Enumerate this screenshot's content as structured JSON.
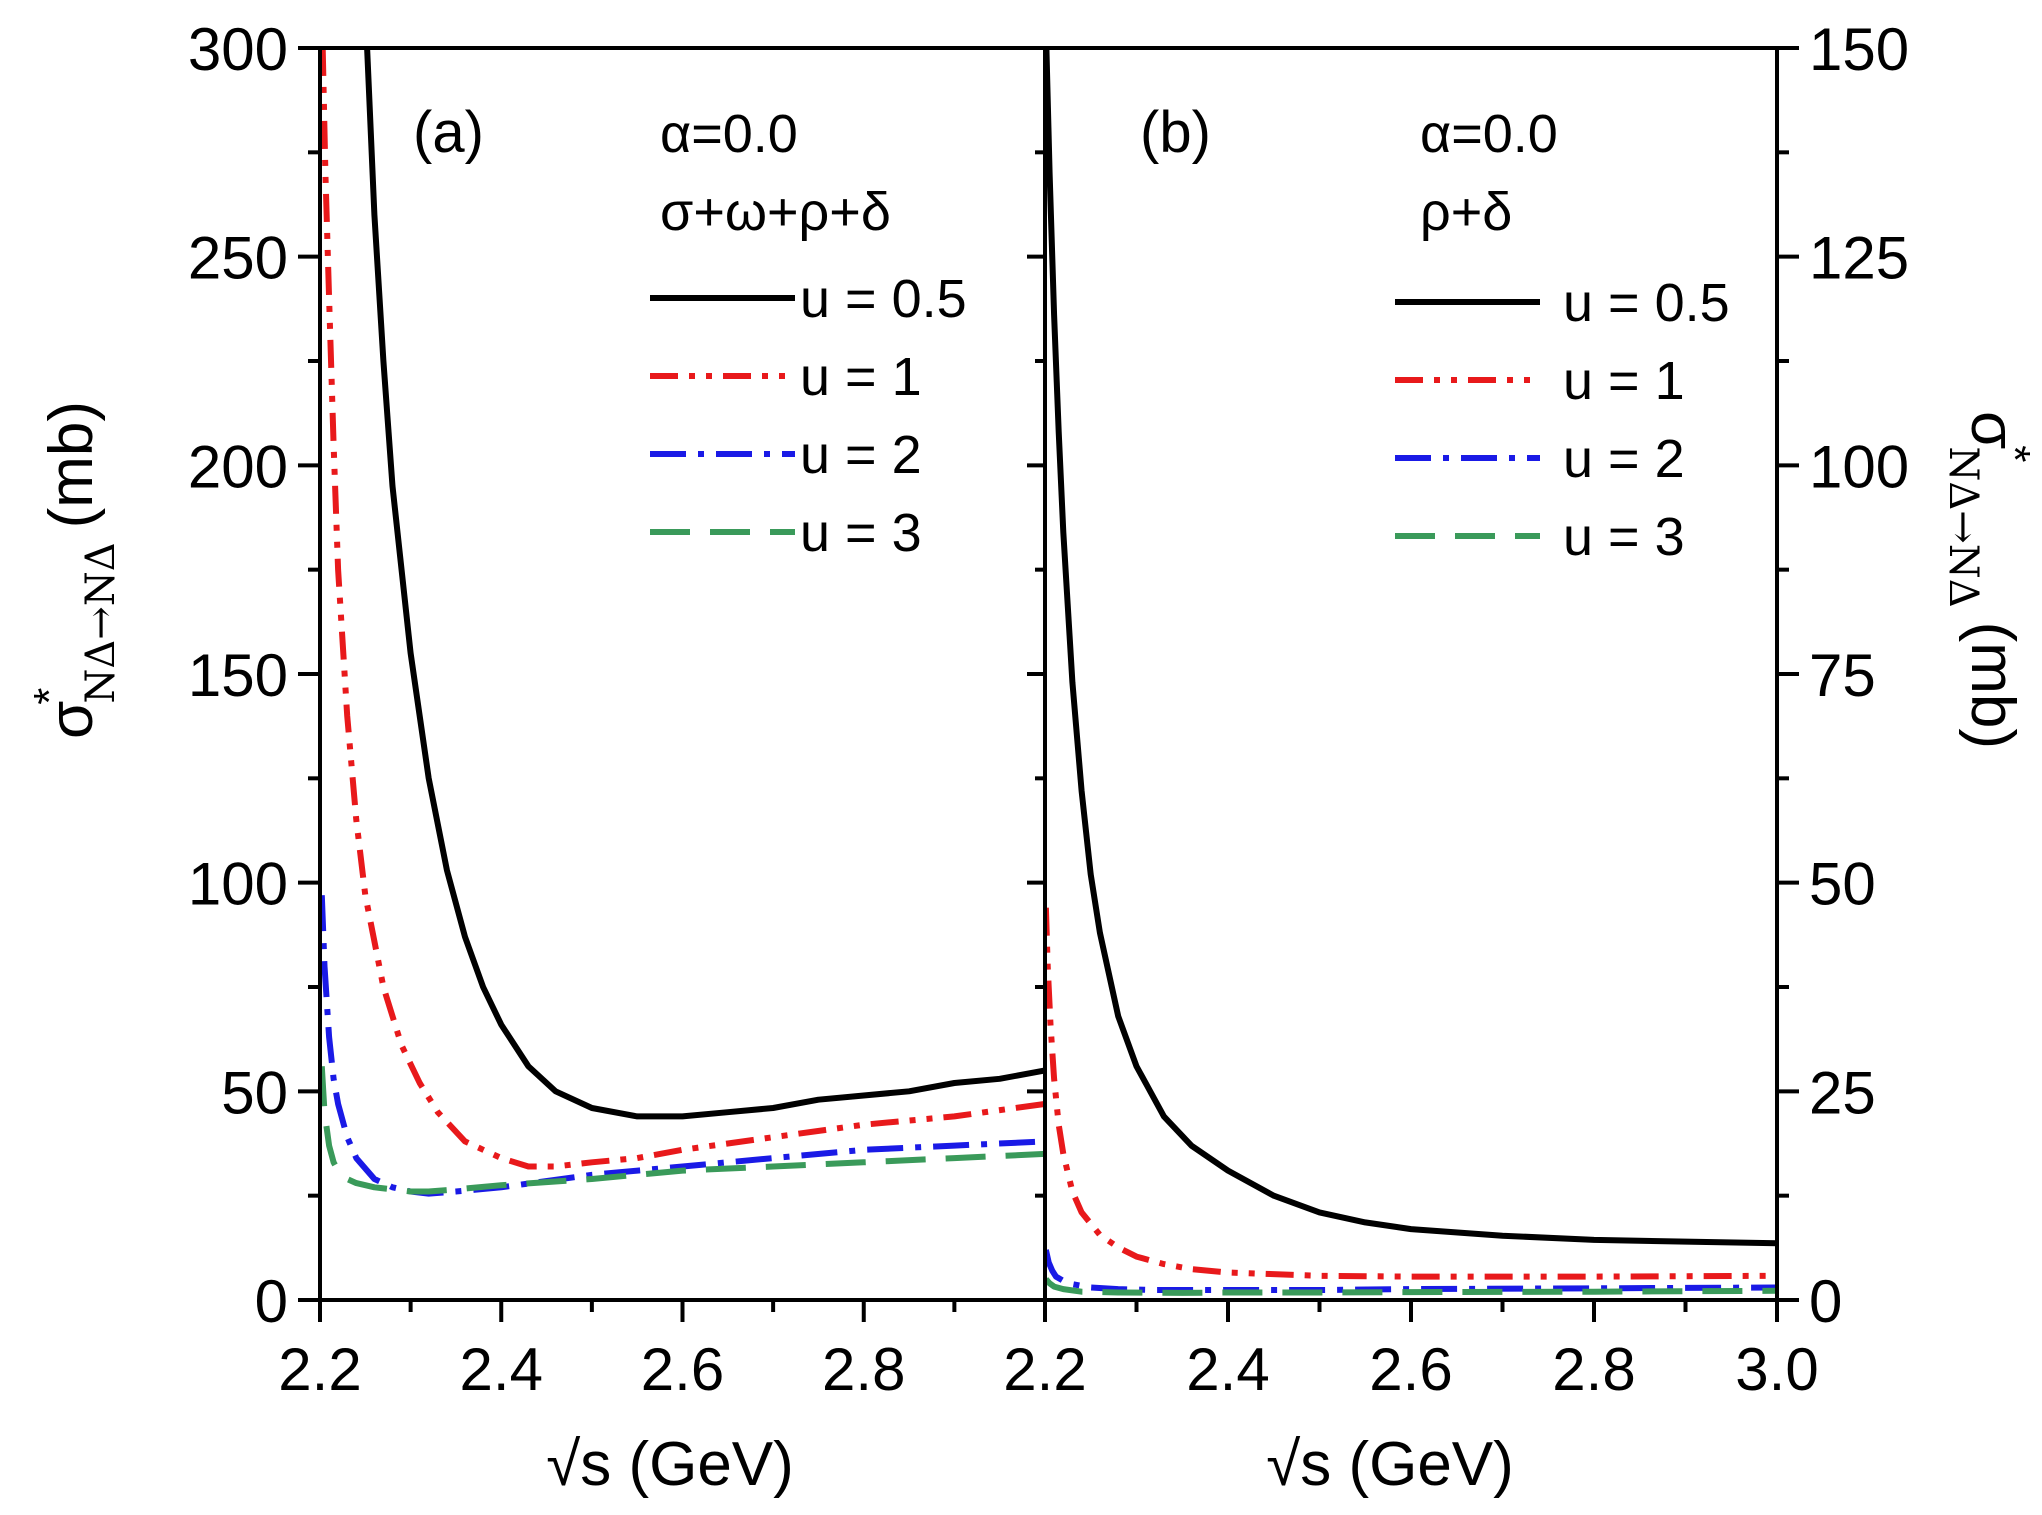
{
  "chart_data": {
    "type": "line",
    "shared": {
      "xlabel": "√s (GeV)",
      "ylabel_left": {
        "main": "σ",
        "sup": "*",
        "sub": "NΔ→NΔ",
        "unit": "(mb)"
      },
      "ylabel_right": {
        "main": "σ",
        "sup": "*",
        "sub": "NΔ→NΔ",
        "unit": "(mb)"
      },
      "colors": {
        "u05": "#000000",
        "u1": "#e8191b",
        "u2": "#1a1ae6",
        "u3": "#3a9a5a"
      }
    },
    "panels": [
      {
        "id": "a",
        "label": "(a)",
        "params": [
          "α=0.0",
          "σ+ω+ρ+δ"
        ],
        "xlim": [
          2.2,
          3.0
        ],
        "x_ticks": [
          2.2,
          2.4,
          2.6,
          2.8
        ],
        "ylim": [
          0,
          300
        ],
        "y_ticks": [
          0,
          50,
          100,
          150,
          200,
          250,
          300
        ],
        "y_axis": "left",
        "legend": [
          "u = 0.5",
          "u = 1",
          "u = 2",
          "u = 3"
        ],
        "series": [
          {
            "name": "u = 0.5",
            "style": "solid",
            "color": "#000000",
            "x": [
              2.252,
              2.26,
              2.27,
              2.28,
              2.3,
              2.32,
              2.34,
              2.36,
              2.38,
              2.4,
              2.43,
              2.46,
              2.5,
              2.55,
              2.6,
              2.65,
              2.7,
              2.75,
              2.8,
              2.85,
              2.9,
              2.95,
              3.0
            ],
            "y": [
              300,
              260,
              225,
              195,
              155,
              125,
              103,
              87,
              75,
              66,
              56,
              50,
              46,
              44,
              44,
              45,
              46,
              48,
              49,
              50,
              52,
              53,
              55
            ]
          },
          {
            "name": "u = 1",
            "style": "dashdotdot",
            "color": "#e8191b",
            "x": [
              2.203,
              2.206,
              2.21,
              2.215,
              2.22,
              2.23,
              2.24,
              2.25,
              2.27,
              2.29,
              2.31,
              2.33,
              2.36,
              2.4,
              2.43,
              2.46,
              2.5,
              2.55,
              2.6,
              2.7,
              2.8,
              2.9,
              3.0
            ],
            "y": [
              300,
              270,
              240,
              205,
              175,
              140,
              115,
              97,
              75,
              61,
              52,
              45,
              38,
              34,
              32,
              32,
              33,
              34,
              36,
              39,
              42,
              44,
              47
            ]
          },
          {
            "name": "u = 2",
            "style": "dashdot",
            "color": "#1a1ae6",
            "x": [
              2.202,
              2.205,
              2.21,
              2.215,
              2.22,
              2.23,
              2.24,
              2.26,
              2.28,
              2.3,
              2.32,
              2.35,
              2.4,
              2.5,
              2.6,
              2.7,
              2.8,
              2.9,
              3.0
            ],
            "y": [
              97,
              80,
              63,
              53,
              47,
              39,
              34,
              29,
              27,
              26,
              25.5,
              26,
              27,
              30,
              32,
              34,
              36,
              37,
              38
            ]
          },
          {
            "name": "u = 3",
            "style": "dash",
            "color": "#3a9a5a",
            "x": [
              2.202,
              2.205,
              2.21,
              2.215,
              2.22,
              2.23,
              2.24,
              2.26,
              2.28,
              2.3,
              2.32,
              2.35,
              2.4,
              2.5,
              2.6,
              2.7,
              2.8,
              2.9,
              3.0
            ],
            "y": [
              56,
              45,
              37,
              33,
              31,
              29,
              28,
              27,
              26.5,
              26,
              26,
              26.5,
              27.5,
              29,
              31,
              32,
              33,
              34,
              35
            ]
          }
        ]
      },
      {
        "id": "b",
        "label": "(b)",
        "params": [
          "α=0.0",
          "ρ+δ"
        ],
        "xlim": [
          2.2,
          3.0
        ],
        "x_ticks": [
          2.2,
          2.4,
          2.6,
          2.8,
          3.0
        ],
        "ylim": [
          0,
          150
        ],
        "y_ticks": [
          0,
          25,
          50,
          75,
          100,
          125,
          150
        ],
        "y_axis": "right",
        "legend": [
          "u = 0.5",
          "u = 1",
          "u = 2",
          "u = 3"
        ],
        "series": [
          {
            "name": "u = 0.5",
            "style": "solid",
            "color": "#000000",
            "x": [
              2.2015,
              2.205,
              2.21,
              2.215,
              2.22,
              2.23,
              2.24,
              2.25,
              2.26,
              2.28,
              2.3,
              2.33,
              2.36,
              2.4,
              2.45,
              2.5,
              2.55,
              2.6,
              2.7,
              2.8,
              2.9,
              3.0
            ],
            "y": [
              150,
              135,
              118,
              104,
              92,
              74,
              61,
              51,
              44,
              34,
              28,
              22,
              18.5,
              15.5,
              12.5,
              10.5,
              9.3,
              8.5,
              7.7,
              7.2,
              7.0,
              6.8
            ]
          },
          {
            "name": "u = 1",
            "style": "dashdotdot",
            "color": "#e8191b",
            "x": [
              2.201,
              2.203,
              2.206,
              2.21,
              2.215,
              2.22,
              2.23,
              2.24,
              2.26,
              2.28,
              2.3,
              2.33,
              2.36,
              2.4,
              2.5,
              2.6,
              2.8,
              3.0
            ],
            "y": [
              47,
              40,
              33,
              26.5,
              21,
              17.5,
              13,
              10.5,
              7.8,
              6.3,
              5.2,
              4.3,
              3.7,
              3.3,
              2.9,
              2.8,
              2.8,
              2.9
            ]
          },
          {
            "name": "u = 2",
            "style": "dashdot",
            "color": "#1a1ae6",
            "x": [
              2.201,
              2.204,
              2.208,
              2.212,
              2.22,
              2.23,
              2.25,
              2.28,
              2.32,
              2.4,
              2.5,
              2.6,
              2.8,
              3.0
            ],
            "y": [
              6,
              4.5,
              3.5,
              2.8,
              2.3,
              1.9,
              1.5,
              1.3,
              1.2,
              1.2,
              1.2,
              1.3,
              1.4,
              1.5
            ]
          },
          {
            "name": "u = 3",
            "style": "dash",
            "color": "#3a9a5a",
            "x": [
              2.201,
              2.205,
              2.21,
              2.22,
              2.24,
              2.28,
              2.35,
              2.4,
              2.5,
              2.6,
              2.8,
              3.0
            ],
            "y": [
              2.5,
              2.0,
              1.6,
              1.3,
              1.0,
              0.9,
              0.85,
              0.9,
              0.9,
              0.95,
              1.0,
              1.1
            ]
          }
        ]
      }
    ]
  }
}
